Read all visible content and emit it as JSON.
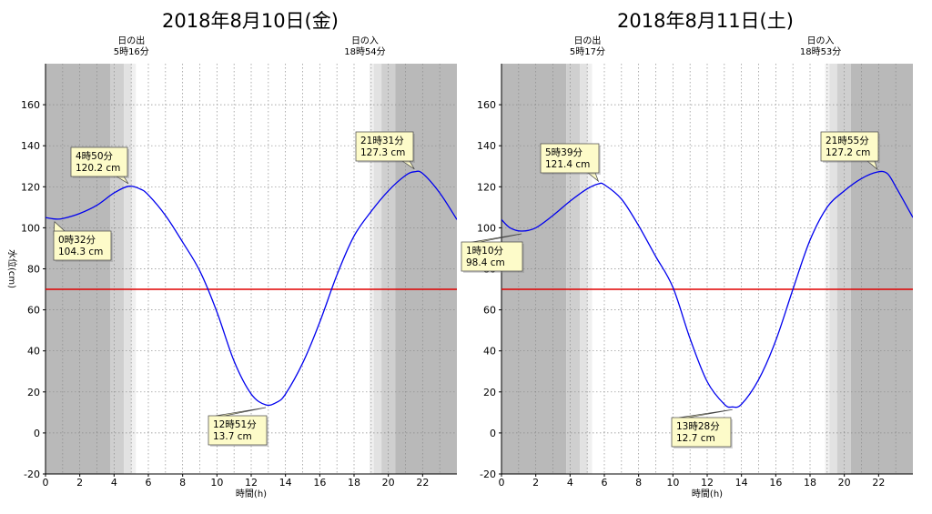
{
  "chart_data": [
    {
      "type": "line",
      "title": "2018年8月10日(金)",
      "xlabel": "時間(h)",
      "ylabel": "水位(cm)",
      "xlim": [
        0,
        24
      ],
      "ylim": [
        -20,
        180
      ],
      "x_ticks": [
        "0",
        "2",
        "4",
        "6",
        "8",
        "10",
        "12",
        "14",
        "16",
        "18",
        "20",
        "22"
      ],
      "y_ticks": [
        "-20",
        "0",
        "20",
        "40",
        "60",
        "80",
        "100",
        "120",
        "140",
        "160"
      ],
      "sunrise": {
        "label": "日の出",
        "time": "5時16分",
        "hour": 5.27
      },
      "sunset": {
        "label": "日の入",
        "time": "18時54分",
        "hour": 18.9
      },
      "reference_level": 70,
      "reference_color": "#e00000",
      "line_color": "#0000ee",
      "series": [
        {
          "x": [
            0,
            0.53,
            1,
            2,
            3,
            4,
            4.83,
            5.5,
            6,
            7,
            8,
            9,
            10,
            11,
            12,
            12.85,
            13.5,
            14,
            15,
            16,
            17,
            18,
            19,
            20,
            21,
            21.52,
            22,
            23,
            24
          ],
          "y": [
            105,
            104.3,
            104.5,
            107,
            111,
            117,
            120.2,
            119,
            116,
            106,
            93,
            79,
            59,
            35,
            19,
            13.7,
            15,
            19,
            34,
            54,
            77,
            96,
            108,
            118,
            125.5,
            127.3,
            126.5,
            117,
            104
          ]
        }
      ],
      "annotations": [
        {
          "time": "4時50分",
          "value": "120.2 cm",
          "hour": 4.83,
          "level": 120.2
        },
        {
          "time": "0時32分",
          "value": "104.3 cm",
          "hour": 0.53,
          "level": 104.3
        },
        {
          "time": "12時51分",
          "value": "13.7 cm",
          "hour": 12.85,
          "level": 13.7
        },
        {
          "time": "21時31分",
          "value": "127.3 cm",
          "hour": 21.52,
          "level": 127.3
        }
      ]
    },
    {
      "type": "line",
      "title": "2018年8月11日(土)",
      "xlabel": "時間(h)",
      "ylabel": "水位(cm)",
      "xlim": [
        0,
        24
      ],
      "ylim": [
        -20,
        180
      ],
      "x_ticks": [
        "0",
        "2",
        "4",
        "6",
        "8",
        "10",
        "12",
        "14",
        "16",
        "18",
        "20",
        "22"
      ],
      "y_ticks": [
        "-20",
        "0",
        "20",
        "40",
        "60",
        "80",
        "100",
        "120",
        "140",
        "160"
      ],
      "sunrise": {
        "label": "日の出",
        "time": "5時17分",
        "hour": 5.28
      },
      "sunset": {
        "label": "日の入",
        "time": "18時53分",
        "hour": 18.88
      },
      "reference_level": 70,
      "reference_color": "#e00000",
      "line_color": "#0000ee",
      "series": [
        {
          "x": [
            0,
            0.5,
            1.17,
            2,
            3,
            4,
            5,
            5.65,
            6,
            7,
            8,
            9,
            10,
            11,
            12,
            13,
            13.47,
            14,
            15,
            16,
            17,
            18,
            19,
            20,
            21,
            21.92,
            22.5,
            23,
            24
          ],
          "y": [
            104,
            100,
            98.4,
            100,
            106,
            113,
            119,
            121.4,
            121,
            114,
            101,
            86,
            71,
            46,
            25,
            14,
            12.7,
            14,
            26,
            45,
            70,
            94,
            110,
            118,
            124,
            127.2,
            126.5,
            120,
            105
          ]
        }
      ],
      "annotations": [
        {
          "time": "5時39分",
          "value": "121.4 cm",
          "hour": 5.65,
          "level": 121.4
        },
        {
          "time": "1時10分",
          "value": "98.4 cm",
          "hour": 1.17,
          "level": 98.4
        },
        {
          "time": "13時28分",
          "value": "12.7 cm",
          "hour": 13.47,
          "level": 12.7
        },
        {
          "time": "21時55分",
          "value": "127.2 cm",
          "hour": 21.92,
          "level": 127.2
        }
      ]
    }
  ]
}
